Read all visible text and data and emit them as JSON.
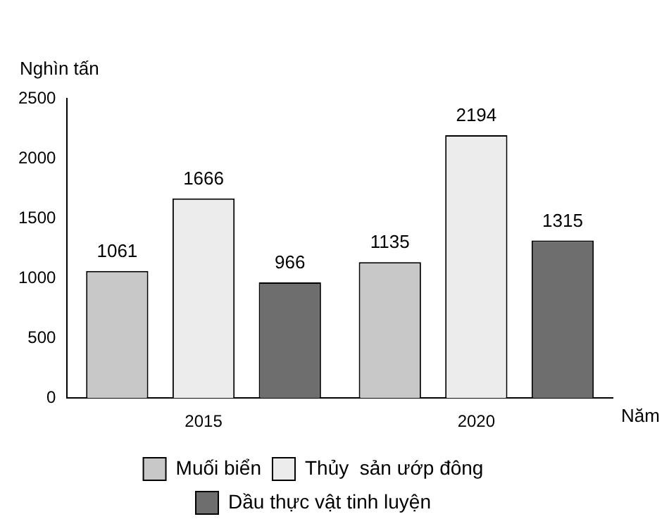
{
  "chart_data": {
    "type": "bar",
    "ylabel": "Nghìn tấn",
    "xlabel": "Năm",
    "categories": [
      "2015",
      "2020"
    ],
    "series": [
      {
        "name": "Muối biển",
        "color": "#c8c8c8",
        "values": [
          1061,
          1135
        ]
      },
      {
        "name": "Thủy  sản ướp đông",
        "color": "#ececec",
        "values": [
          1666,
          2194
        ]
      },
      {
        "name": "Dầu thực vật tinh luyện",
        "color": "#6e6e6e",
        "values": [
          966,
          1315
        ]
      }
    ],
    "ylim": [
      0,
      2500
    ],
    "yticks": [
      0,
      500,
      1000,
      1500,
      2000,
      2500
    ],
    "data_labels": true,
    "legend": "bottom",
    "grid": false
  }
}
